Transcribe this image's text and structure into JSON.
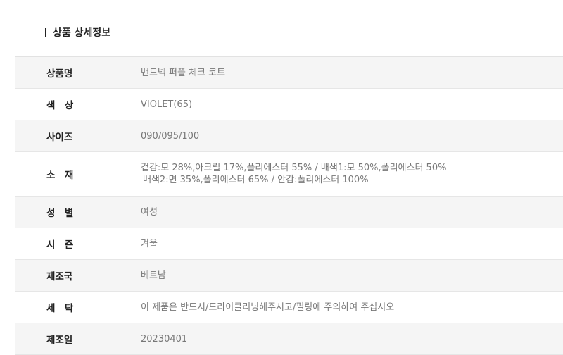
{
  "title": "상품 상세정보",
  "rows": [
    {
      "label": "상품명",
      "value": "밴드넥 퍼플 체크 코트"
    },
    {
      "label": "색　상",
      "value": "VIOLET(65)"
    },
    {
      "label": "사이즈",
      "value": "090/095/100"
    },
    {
      "label": "소　재",
      "value": "겉감:모 28%,아크릴 17%,폴리에스터 55% / 배색1:모 50%,폴리에스터 50%",
      "value2": "배색2:면 35%,폴리에스터 65% / 안감:폴리에스터 100%"
    },
    {
      "label": "성　별",
      "value": "여성"
    },
    {
      "label": "시　즌",
      "value": "겨울"
    },
    {
      "label": "제조국",
      "value": "베트남"
    },
    {
      "label": "세　탁",
      "value": "이 제품은 반드시/드라이클리닝해주시고/필링에 주의하여 주십시오"
    },
    {
      "label": "제조일",
      "value": "20230401"
    }
  ]
}
